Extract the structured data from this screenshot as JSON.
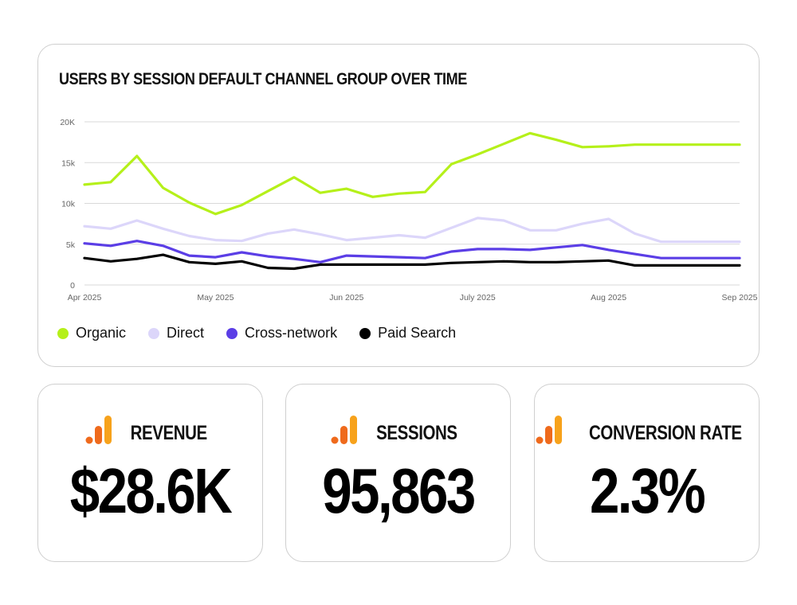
{
  "colors": {
    "organic": "#b5f01a",
    "direct": "#dcd6fa",
    "cross_network": "#5b3ee6",
    "paid_search": "#000000",
    "grid": "#d9d9d9",
    "icon_orange_light": "#f7a21b",
    "icon_orange_dark": "#ef6a1c"
  },
  "chart_data": {
    "type": "line",
    "title": "USERS BY SESSION DEFAULT CHANNEL GROUP OVER TIME",
    "xlabel": "",
    "ylabel": "",
    "ylim": [
      0,
      20000
    ],
    "y_ticks": [
      0,
      5000,
      10000,
      15000,
      20000
    ],
    "y_tick_labels": [
      "0",
      "5k",
      "10k",
      "15k",
      "20K"
    ],
    "x_tick_labels": [
      "Apr 2025",
      "May 2025",
      "Jun 2025",
      "July 2025",
      "Aug 2025",
      "Sep 2025"
    ],
    "x_tick_positions": [
      0,
      5,
      10,
      15,
      20,
      25
    ],
    "x_domain": [
      0,
      25
    ],
    "grid": true,
    "legend_position": "bottom-left",
    "x": [
      0,
      1,
      2,
      3,
      4,
      5,
      6,
      7,
      8,
      9,
      10,
      11,
      12,
      13,
      14,
      15,
      16,
      17,
      18,
      19,
      20,
      21,
      22,
      23,
      24,
      25
    ],
    "series": [
      {
        "name": "Organic",
        "color_key": "organic",
        "values": [
          12300,
          12600,
          15800,
          11900,
          10100,
          8700,
          9800,
          11500,
          13200,
          11300,
          11800,
          10800,
          11200,
          11400,
          14800,
          16000,
          17300,
          18600,
          17800,
          16900,
          17000,
          17200,
          17200,
          17200,
          17200,
          17200
        ]
      },
      {
        "name": "Direct",
        "color_key": "direct",
        "values": [
          7200,
          6900,
          7900,
          6900,
          6000,
          5500,
          5400,
          6300,
          6800,
          6200,
          5500,
          5800,
          6100,
          5800,
          7000,
          8200,
          7900,
          6700,
          6700,
          7500,
          8100,
          6300,
          5300,
          5300,
          5300,
          5300
        ]
      },
      {
        "name": "Cross-network",
        "color_key": "cross_network",
        "values": [
          5100,
          4800,
          5400,
          4800,
          3600,
          3400,
          4000,
          3500,
          3200,
          2800,
          3600,
          3500,
          3400,
          3300,
          4100,
          4400,
          4400,
          4300,
          4600,
          4900,
          4300,
          3800,
          3300,
          3300,
          3300,
          3300
        ]
      },
      {
        "name": "Paid Search",
        "color_key": "paid_search",
        "values": [
          3300,
          2900,
          3200,
          3700,
          2800,
          2600,
          2900,
          2100,
          2000,
          2500,
          2500,
          2500,
          2500,
          2500,
          2700,
          2800,
          2900,
          2800,
          2800,
          2900,
          3000,
          2400,
          2400,
          2400,
          2400,
          2400
        ]
      }
    ]
  },
  "legend": [
    {
      "label": "Organic",
      "color_key": "organic"
    },
    {
      "label": "Direct",
      "color_key": "direct"
    },
    {
      "label": "Cross-network",
      "color_key": "cross_network"
    },
    {
      "label": "Paid Search",
      "color_key": "paid_search"
    }
  ],
  "kpis": [
    {
      "label": "REVENUE",
      "value": "$28.6K",
      "icon": "analytics-bar-icon"
    },
    {
      "label": "SESSIONS",
      "value": "95,863",
      "icon": "analytics-bar-icon"
    },
    {
      "label": "CONVERSION RATE",
      "value": "2.3%",
      "icon": "analytics-bar-icon"
    }
  ]
}
